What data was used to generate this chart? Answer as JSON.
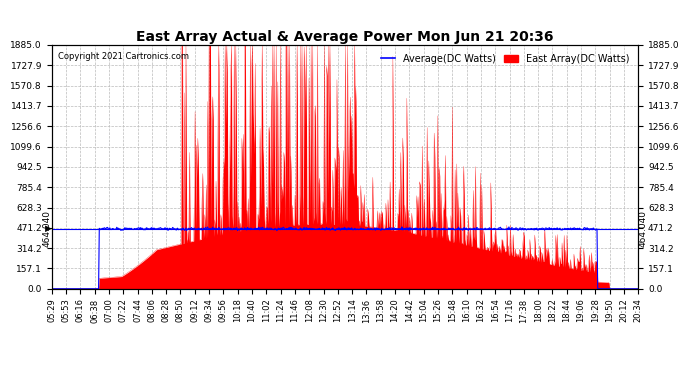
{
  "title": "East Array Actual & Average Power Mon Jun 21 20:36",
  "copyright": "Copyright 2021 Cartronics.com",
  "legend_avg": "Average(DC Watts)",
  "legend_east": "East Array(DC Watts)",
  "avg_color": "blue",
  "east_color": "red",
  "hline_value": 464.04,
  "hline_label": "464.040",
  "ymin": 0.0,
  "ymax": 1885.0,
  "yticks": [
    0.0,
    157.1,
    314.2,
    471.2,
    628.3,
    785.4,
    942.5,
    1099.6,
    1256.6,
    1413.7,
    1570.8,
    1727.9,
    1885.0
  ],
  "ytick_labels": [
    "0.0",
    "157.1",
    "314.2",
    "471.2",
    "628.3",
    "785.4",
    "942.5",
    "1099.6",
    "1256.6",
    "1413.7",
    "1570.8",
    "1727.9",
    "1885.0"
  ],
  "xtick_labels": [
    "05:29",
    "05:53",
    "06:16",
    "06:38",
    "07:00",
    "07:22",
    "07:44",
    "08:06",
    "08:28",
    "08:50",
    "09:12",
    "09:34",
    "09:56",
    "10:18",
    "10:40",
    "11:02",
    "11:24",
    "11:46",
    "12:08",
    "12:30",
    "12:52",
    "13:14",
    "13:36",
    "13:58",
    "14:20",
    "14:42",
    "15:04",
    "15:26",
    "15:48",
    "16:10",
    "16:32",
    "16:54",
    "17:16",
    "17:38",
    "18:00",
    "18:22",
    "18:44",
    "19:06",
    "19:28",
    "19:50",
    "20:12",
    "20:34"
  ],
  "background_color": "#ffffff",
  "grid_color": "#bbbbbb",
  "title_fontsize": 10,
  "tick_fontsize": 6.5,
  "legend_fontsize": 7
}
